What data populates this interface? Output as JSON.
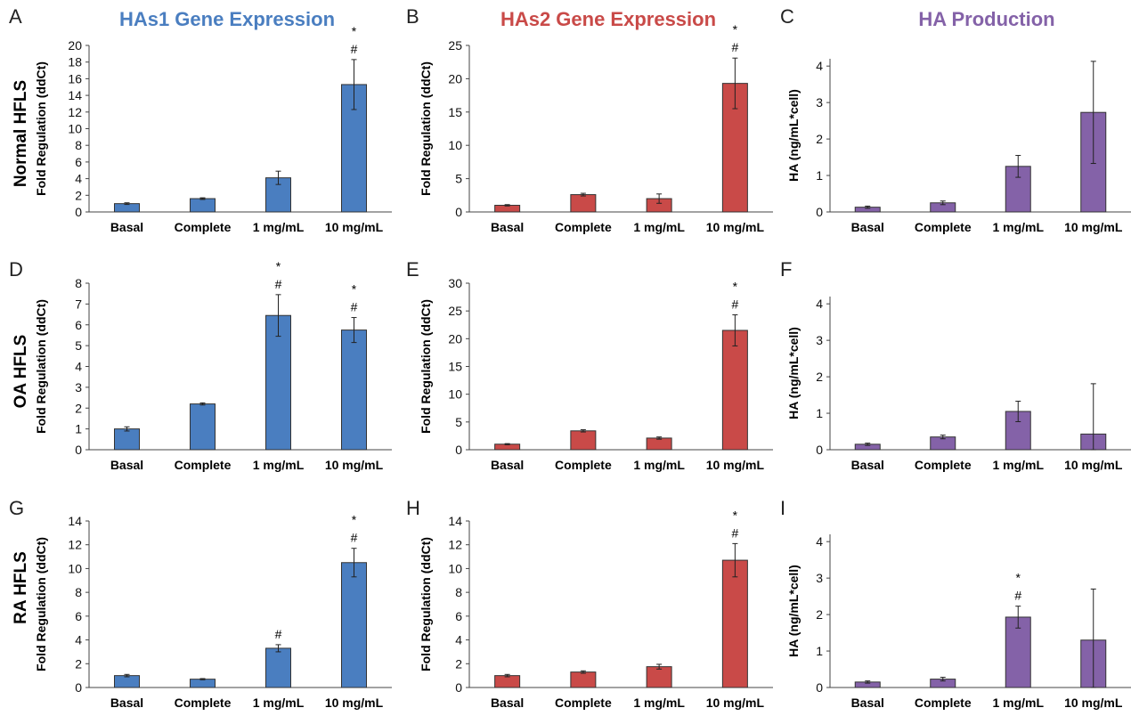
{
  "titles": {
    "col1": "HAs1 Gene Expression",
    "col2": "HAs2 Gene Expression",
    "col3": "HA Production"
  },
  "row_labels": [
    "Normal HFLS",
    "OA HFLS",
    "RA HFLS"
  ],
  "colors": {
    "has1": "#4a7ec0",
    "has2": "#c94a48",
    "ha": "#8462a8"
  },
  "chart_data": [
    {
      "panel": "A",
      "type": "bar",
      "ylabel": "Fold Regulation (ddCt)",
      "ylim": [
        0,
        20
      ],
      "yticks": [
        0,
        2,
        4,
        6,
        8,
        10,
        12,
        14,
        16,
        18,
        20
      ],
      "categories": [
        "Basal",
        "Complete",
        "1 mg/mL",
        "10 mg/mL"
      ],
      "values": [
        1.0,
        1.6,
        4.1,
        15.3
      ],
      "errors": [
        0.1,
        0.1,
        0.8,
        3.0
      ],
      "annotations": [
        "",
        "",
        "",
        "#\n*"
      ],
      "color": "#4a7ec0"
    },
    {
      "panel": "B",
      "type": "bar",
      "ylabel": "Fold Regulation (ddCt)",
      "ylim": [
        0,
        25
      ],
      "yticks": [
        0,
        5,
        10,
        15,
        20,
        25
      ],
      "categories": [
        "Basal",
        "Complete",
        "1 mg/mL",
        "10 mg/mL"
      ],
      "values": [
        1.0,
        2.6,
        2.0,
        19.3
      ],
      "errors": [
        0.1,
        0.2,
        0.7,
        3.8
      ],
      "annotations": [
        "",
        "",
        "",
        "#\n*"
      ],
      "color": "#c94a48"
    },
    {
      "panel": "C",
      "type": "bar",
      "ylabel": "HA (ng/mL*cell)",
      "ylim": [
        0,
        4.2
      ],
      "yticks": [
        0,
        1,
        2,
        3,
        4
      ],
      "categories": [
        "Basal",
        "Complete",
        "1 mg/mL",
        "10 mg/mL"
      ],
      "values": [
        0.13,
        0.25,
        1.25,
        2.73
      ],
      "errors": [
        0.03,
        0.05,
        0.3,
        1.4
      ],
      "annotations": [
        "",
        "",
        "",
        ""
      ],
      "color": "#8462a8"
    },
    {
      "panel": "D",
      "type": "bar",
      "ylabel": "Fold Regulation (ddCt)",
      "ylim": [
        0,
        8
      ],
      "yticks": [
        0,
        1,
        2,
        3,
        4,
        5,
        6,
        7,
        8
      ],
      "categories": [
        "Basal",
        "Complete",
        "1 mg/mL",
        "10 mg/mL"
      ],
      "values": [
        1.0,
        2.2,
        6.45,
        5.75
      ],
      "errors": [
        0.1,
        0.05,
        1.0,
        0.6
      ],
      "annotations": [
        "",
        "",
        "#\n*",
        "#\n*"
      ],
      "color": "#4a7ec0"
    },
    {
      "panel": "E",
      "type": "bar",
      "ylabel": "Fold Regulation (ddCt)",
      "ylim": [
        0,
        30
      ],
      "yticks": [
        0,
        5,
        10,
        15,
        20,
        25,
        30
      ],
      "categories": [
        "Basal",
        "Complete",
        "1 mg/mL",
        "10 mg/mL"
      ],
      "values": [
        1.0,
        3.4,
        2.1,
        21.5
      ],
      "errors": [
        0.1,
        0.2,
        0.2,
        2.8
      ],
      "annotations": [
        "",
        "",
        "",
        "#\n*"
      ],
      "color": "#c94a48"
    },
    {
      "panel": "F",
      "type": "bar",
      "ylabel": "HA (ng/mL*cell)",
      "ylim": [
        0,
        4.2
      ],
      "yticks": [
        0,
        1,
        2,
        3,
        4
      ],
      "categories": [
        "Basal",
        "Complete",
        "1 mg/mL",
        "10 mg/mL"
      ],
      "values": [
        0.15,
        0.35,
        1.05,
        0.43
      ],
      "errors": [
        0.03,
        0.05,
        0.28,
        1.38
      ],
      "annotations": [
        "",
        "",
        "",
        ""
      ],
      "color": "#8462a8"
    },
    {
      "panel": "G",
      "type": "bar",
      "ylabel": "Fold Regulation (ddCt)",
      "ylim": [
        0,
        14
      ],
      "yticks": [
        0,
        2,
        4,
        6,
        8,
        10,
        12,
        14
      ],
      "categories": [
        "Basal",
        "Complete",
        "1 mg/mL",
        "10 mg/mL"
      ],
      "values": [
        1.0,
        0.7,
        3.3,
        10.5
      ],
      "errors": [
        0.1,
        0.05,
        0.3,
        1.2
      ],
      "annotations": [
        "",
        "",
        "#",
        "#\n*"
      ],
      "color": "#4a7ec0"
    },
    {
      "panel": "H",
      "type": "bar",
      "ylabel": "Fold Regulation (ddCt)",
      "ylim": [
        0,
        14
      ],
      "yticks": [
        0,
        2,
        4,
        6,
        8,
        10,
        12,
        14
      ],
      "categories": [
        "Basal",
        "Complete",
        "1 mg/mL",
        "10 mg/mL"
      ],
      "values": [
        1.0,
        1.3,
        1.75,
        10.7
      ],
      "errors": [
        0.1,
        0.1,
        0.2,
        1.4
      ],
      "annotations": [
        "",
        "",
        "",
        "#\n*"
      ],
      "color": "#c94a48"
    },
    {
      "panel": "I",
      "type": "bar",
      "ylabel": "HA (ng/mL*cell)",
      "ylim": [
        0,
        4.2
      ],
      "yticks": [
        0,
        1,
        2,
        3,
        4
      ],
      "categories": [
        "Basal",
        "Complete",
        "1 mg/mL",
        "10 mg/mL"
      ],
      "values": [
        0.15,
        0.23,
        1.93,
        1.3
      ],
      "errors": [
        0.03,
        0.05,
        0.3,
        1.4
      ],
      "annotations": [
        "",
        "",
        "#\n*",
        ""
      ],
      "color": "#8462a8"
    }
  ]
}
